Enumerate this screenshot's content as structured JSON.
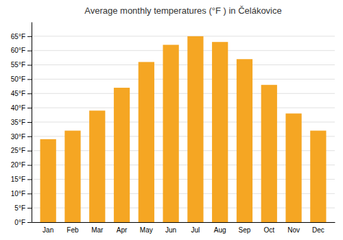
{
  "chart_data": {
    "type": "bar",
    "title": "Average monthly temperatures (°F ) in Čelákovice",
    "categories": [
      "Jan",
      "Feb",
      "Mar",
      "Apr",
      "May",
      "Jun",
      "Jul",
      "Aug",
      "Sep",
      "Oct",
      "Nov",
      "Dec"
    ],
    "values": [
      29,
      32,
      39,
      47,
      56,
      62,
      65,
      63,
      57,
      48,
      38,
      32
    ],
    "color": "#F5A623",
    "ylim": [
      0,
      70
    ],
    "yticks": [
      {
        "value": 0,
        "label": "0°F"
      },
      {
        "value": 5,
        "label": "5°F"
      },
      {
        "value": 10,
        "label": "10°F"
      },
      {
        "value": 15,
        "label": "15°F"
      },
      {
        "value": 20,
        "label": "20°F"
      },
      {
        "value": 25,
        "label": "25°F"
      },
      {
        "value": 30,
        "label": "30°F"
      },
      {
        "value": 35,
        "label": "35°F"
      },
      {
        "value": 40,
        "label": "40°F"
      },
      {
        "value": 45,
        "label": "45°F"
      },
      {
        "value": 50,
        "label": "50°F"
      },
      {
        "value": 55,
        "label": "55°F"
      },
      {
        "value": 60,
        "label": "60°F"
      },
      {
        "value": 65,
        "label": "65°F"
      }
    ],
    "grid": true
  }
}
